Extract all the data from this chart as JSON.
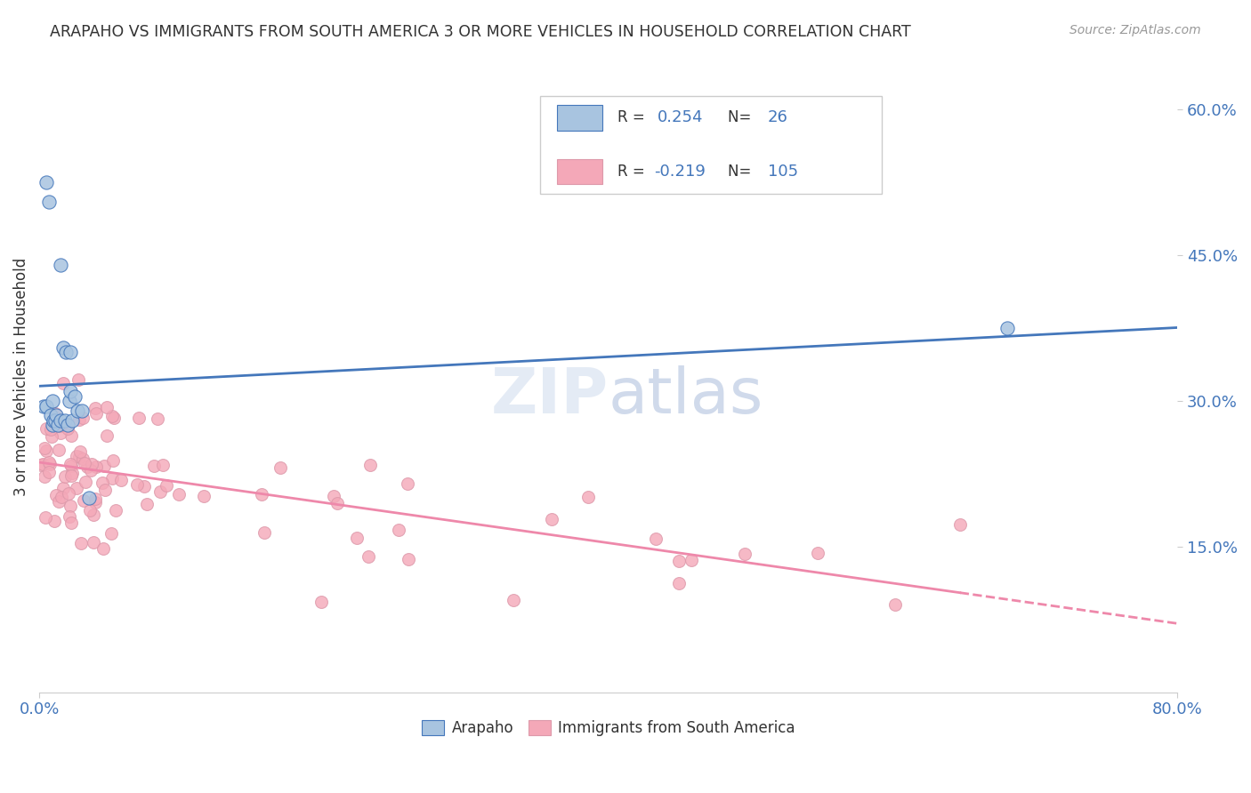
{
  "title": "ARAPAHO VS IMMIGRANTS FROM SOUTH AMERICA 3 OR MORE VEHICLES IN HOUSEHOLD CORRELATION CHART",
  "source": "Source: ZipAtlas.com",
  "ylabel": "3 or more Vehicles in Household",
  "ylabel_right_ticks": [
    "60.0%",
    "45.0%",
    "30.0%",
    "15.0%"
  ],
  "ylabel_right_vals": [
    0.6,
    0.45,
    0.3,
    0.15
  ],
  "xlim": [
    0.0,
    0.8
  ],
  "ylim": [
    0.0,
    0.65
  ],
  "arapaho_R": 0.254,
  "arapaho_N": 26,
  "immigrants_R": -0.219,
  "immigrants_N": 105,
  "arapaho_color": "#a8c4e0",
  "immigrants_color": "#f4a8b8",
  "arapaho_line_color": "#4477bb",
  "immigrants_line_color": "#ee88aa",
  "arapaho_x": [
    0.003,
    0.005,
    0.005,
    0.007,
    0.008,
    0.009,
    0.009,
    0.01,
    0.011,
    0.012,
    0.013,
    0.015,
    0.015,
    0.017,
    0.018,
    0.019,
    0.02,
    0.021,
    0.022,
    0.022,
    0.023,
    0.025,
    0.027,
    0.03,
    0.035,
    0.68
  ],
  "arapaho_y": [
    0.295,
    0.525,
    0.295,
    0.505,
    0.285,
    0.3,
    0.275,
    0.28,
    0.28,
    0.285,
    0.275,
    0.44,
    0.28,
    0.355,
    0.28,
    0.35,
    0.275,
    0.3,
    0.35,
    0.31,
    0.28,
    0.305,
    0.29,
    0.29,
    0.2,
    0.375
  ]
}
